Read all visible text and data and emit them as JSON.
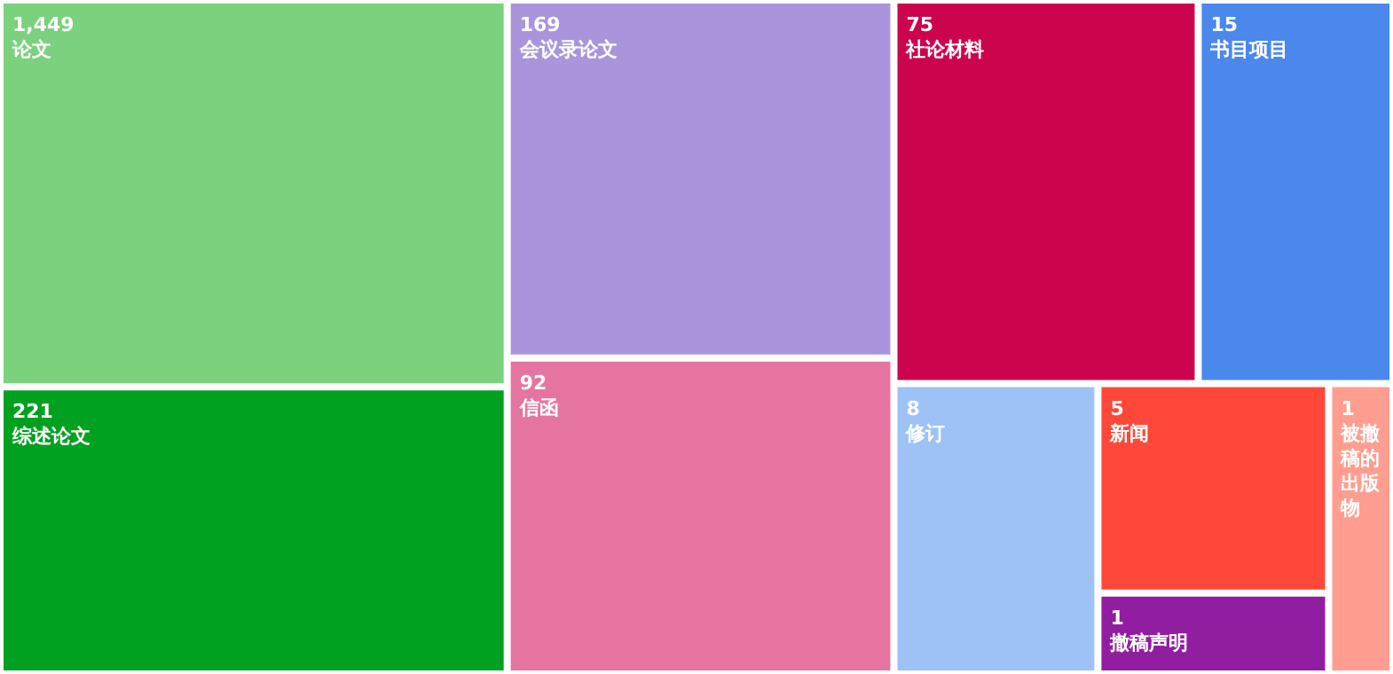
{
  "chart_data": {
    "type": "other",
    "data_labels": true,
    "categories": [
      "论文",
      "综述论文",
      "会议录论文",
      "信函",
      "社论材料",
      "书目项目",
      "修订",
      "新闻",
      "被撤稿的出版物",
      "撤稿声明"
    ],
    "values": [
      1449,
      221,
      169,
      92,
      75,
      15,
      8,
      5,
      1,
      1
    ],
    "value_labels": [
      "1,449",
      "221",
      "169",
      "92",
      "75",
      "15",
      "8",
      "5",
      "1",
      "1"
    ],
    "colors": [
      "#7bd17e",
      "#00a020",
      "#aa95dc",
      "#e674a0",
      "#cc044e",
      "#4a88ec",
      "#9ec2f6",
      "#ff4839",
      "#ff9e90",
      "#911ea0"
    ]
  }
}
